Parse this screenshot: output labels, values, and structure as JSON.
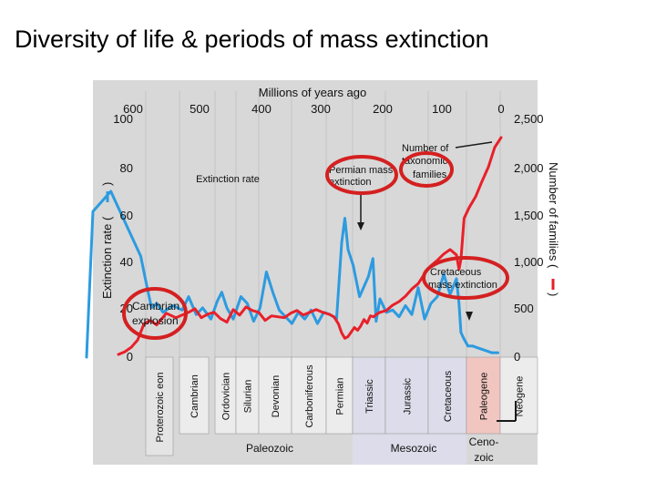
{
  "slide_title": "Diversity of life & periods of mass extinction",
  "chart_data": {
    "type": "line",
    "title": "Millions of years ago",
    "x_ticks": [
      600,
      500,
      400,
      300,
      200,
      100,
      0
    ],
    "xlim": [
      650,
      -10
    ],
    "y_left": {
      "label": "Extinction rate (",
      "label_close": ")",
      "ticks": [
        0,
        20,
        40,
        60,
        80,
        100
      ],
      "tick_labels": [
        "0",
        "20",
        "40",
        "60",
        "80",
        "100"
      ],
      "ylim": [
        0,
        100
      ]
    },
    "y_right": {
      "label": "Number of families (",
      "label_close": ")",
      "ticks": [
        0,
        500,
        1000,
        1500,
        2000,
        2500
      ],
      "tick_labels": [
        "0",
        "500",
        "1,000",
        "1,500",
        "2,000",
        "2,500"
      ],
      "ylim": [
        0,
        2500
      ]
    },
    "series": [
      {
        "name": "Extinction rate",
        "axis": "left",
        "color": "#2d9be0",
        "x": [
          650,
          640,
          612,
          565,
          555,
          548,
          540,
          530,
          515,
          500,
          490,
          478,
          468,
          455,
          445,
          438,
          430,
          420,
          408,
          398,
          388,
          378,
          368,
          358,
          348,
          338,
          328,
          318,
          308,
          298,
          288,
          278,
          268,
          258,
          250,
          245,
          240,
          232,
          222,
          208,
          201,
          196,
          190,
          180,
          170,
          160,
          150,
          140,
          130,
          120,
          110,
          100,
          90,
          80,
          70,
          66,
          63,
          58,
          52,
          45,
          35,
          25,
          15,
          5
        ],
        "y": [
          0,
          65,
          74,
          45,
          31,
          22,
          24,
          20,
          23,
          21,
          27,
          19,
          22,
          17,
          25,
          29,
          22,
          17,
          27,
          24,
          16,
          22,
          38,
          29,
          21,
          18,
          15,
          20,
          17,
          21,
          15,
          20,
          19,
          17,
          51,
          62,
          48,
          41,
          27,
          36,
          44,
          16,
          26,
          20,
          21,
          18,
          23,
          19,
          31,
          17,
          24,
          27,
          37,
          28,
          35,
          24,
          11,
          8,
          5,
          5,
          4,
          3,
          2,
          2
        ]
      },
      {
        "name": "Number of families",
        "axis": "right",
        "color": "#e8202a",
        "x": [
          600,
          590,
          580,
          570,
          565,
          560,
          550,
          540,
          525,
          510,
          500,
          490,
          480,
          470,
          460,
          450,
          440,
          430,
          420,
          410,
          400,
          390,
          380,
          370,
          360,
          350,
          340,
          330,
          320,
          310,
          300,
          290,
          280,
          270,
          262,
          255,
          250,
          245,
          240,
          235,
          230,
          225,
          220,
          215,
          210,
          205,
          200,
          195,
          190,
          180,
          170,
          160,
          150,
          140,
          130,
          120,
          110,
          100,
          90,
          80,
          70,
          66,
          63,
          58,
          50,
          40,
          30,
          20,
          10,
          0
        ],
        "y": [
          30,
          60,
          110,
          190,
          280,
          370,
          410,
          360,
          490,
          440,
          470,
          500,
          540,
          440,
          480,
          500,
          430,
          390,
          530,
          470,
          560,
          520,
          500,
          410,
          460,
          450,
          440,
          490,
          520,
          470,
          500,
          530,
          500,
          480,
          450,
          370,
          270,
          210,
          230,
          280,
          330,
          300,
          350,
          420,
          380,
          460,
          450,
          480,
          500,
          520,
          580,
          620,
          680,
          760,
          820,
          930,
          1020,
          1080,
          1150,
          1200,
          1140,
          980,
          1090,
          1550,
          1670,
          1790,
          1960,
          2120,
          2340,
          2450
        ]
      }
    ],
    "annotations": {
      "extinction_rate": "Extinction rate",
      "permian_line1": "Permian mass",
      "permian_line2": "extinction",
      "families_line1": "Number of",
      "families_line2": "taxonomic",
      "families_line3": "families",
      "cretaceous_line1": "Cretaceous",
      "cretaceous_line2": "mass extinction",
      "cambrian_line1": "Cambrian",
      "cambrian_line2": "explosion"
    },
    "periods": [
      "Proterozoic eon",
      "Cambrian",
      "Ordovician",
      "Silurian",
      "Devonian",
      "Carboniferous",
      "Permian",
      "Triassic",
      "Jurassic",
      "Cretaceous",
      "Paleogene",
      "Neogene"
    ],
    "eras": [
      "Paleozoic",
      "Mesozoic",
      "Ceno-",
      "zoic"
    ],
    "colors": {
      "plot_bg": "#d8d8d8",
      "mesozoic_bg": "#dcdcea",
      "paleogene_bg": "#f2c6c0",
      "highlight_ring": "#d42020",
      "arrow": "#1a1a1a"
    }
  }
}
